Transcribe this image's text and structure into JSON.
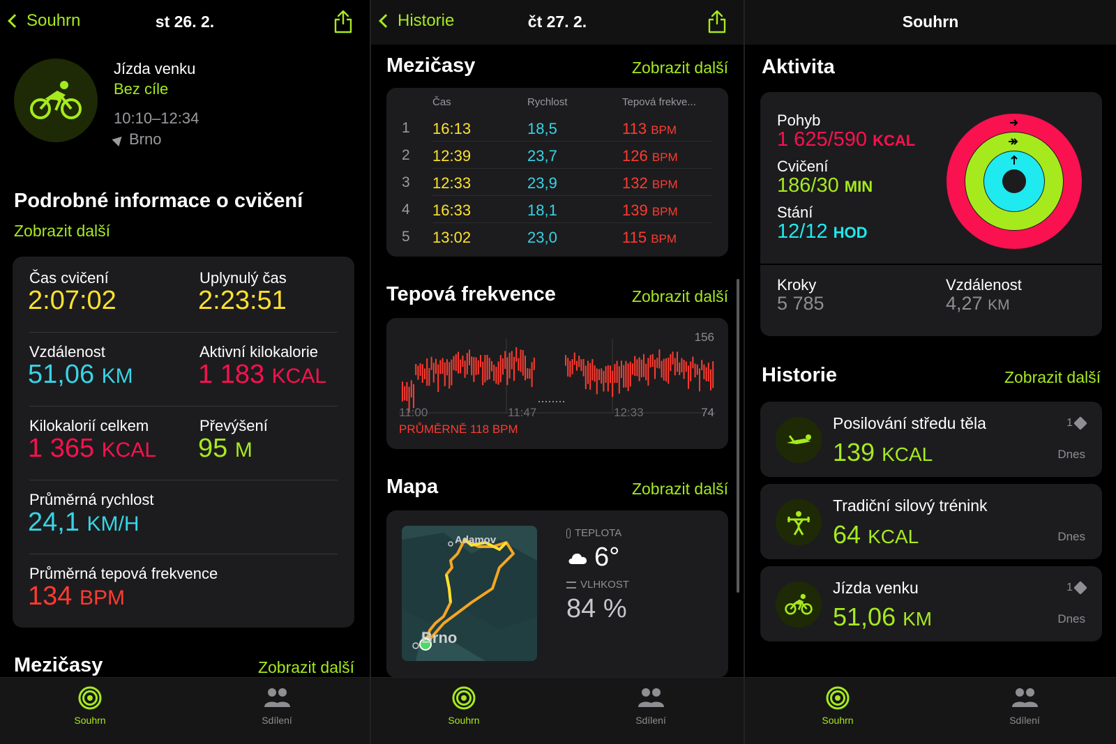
{
  "panel1": {
    "back_label": "Souhrn",
    "title": "st 26. 2.",
    "workout": {
      "name": "Jízda venku",
      "goal": "Bez cíle",
      "time": "10:10–12:34",
      "location": "Brno"
    },
    "details_title": "Podrobné informace o cvičení",
    "details_more": "Zobrazit další",
    "stats": {
      "exercise_time_label": "Čas cvičení",
      "exercise_time": "2:07:02",
      "elapsed_label": "Uplynulý čas",
      "elapsed": "2:23:51",
      "distance_label": "Vzdálenost",
      "distance": "51,06",
      "distance_unit": "KM",
      "active_kcal_label": "Aktivní kilokalorie",
      "active_kcal": "1 183",
      "active_kcal_unit": "KCAL",
      "total_kcal_label": "Kilokalorií celkem",
      "total_kcal": "1 365",
      "total_kcal_unit": "KCAL",
      "elevation_label": "Převýšení",
      "elevation": "95",
      "elevation_unit": "M",
      "avg_speed_label": "Průměrná rychlost",
      "avg_speed": "24,1",
      "avg_speed_unit": "KM/H",
      "avg_hr_label": "Průměrná tepová frekvence",
      "avg_hr": "134",
      "avg_hr_unit": "BPM"
    },
    "splits_title": "Mezičasy",
    "splits_more": "Zobrazit další"
  },
  "panel2": {
    "back_label": "Historie",
    "title": "čt 27. 2.",
    "splits": {
      "title": "Mezičasy",
      "more": "Zobrazit další",
      "col_time": "Čas",
      "col_speed": "Rychlost",
      "col_hr": "Tepová frekve...",
      "unit": "BPM",
      "rows": [
        {
          "n": "1",
          "time": "16:13",
          "speed": "18,5",
          "hr": "113"
        },
        {
          "n": "2",
          "time": "12:39",
          "speed": "23,7",
          "hr": "126"
        },
        {
          "n": "3",
          "time": "12:33",
          "speed": "23,9",
          "hr": "132"
        },
        {
          "n": "4",
          "time": "16:33",
          "speed": "18,1",
          "hr": "139"
        },
        {
          "n": "5",
          "time": "13:02",
          "speed": "23,0",
          "hr": "115"
        }
      ]
    },
    "heart": {
      "title": "Tepová frekvence",
      "more": "Zobrazit další",
      "max_label": "156",
      "min_label": "74",
      "x_labels": [
        "11:00",
        "11:47",
        "12:33"
      ],
      "average": "PRŮMĚRNĚ 118 BPM"
    },
    "map": {
      "title": "Mapa",
      "more": "Zobrazit další",
      "place_top": "Adamov",
      "place_bottom": "Brno",
      "temp_label": "TEPLOTA",
      "temp": "6°",
      "humidity_label": "VLHKOST",
      "humidity": "84 %"
    }
  },
  "panel3": {
    "title": "Souhrn",
    "activity_title": "Aktivita",
    "move_label": "Pohyb",
    "move_value": "1 625/590",
    "move_unit": "KCAL",
    "exercise_label": "Cvičení",
    "exercise_value": "186/30",
    "exercise_unit": "MIN",
    "stand_label": "Stání",
    "stand_value": "12/12",
    "stand_unit": "HOD",
    "steps_label": "Kroky",
    "steps": "5 785",
    "distance_label": "Vzdálenost",
    "distance": "4,27",
    "distance_unit": "KM",
    "history_title": "Historie",
    "history_more": "Zobrazit další",
    "history": [
      {
        "name": "Posilování středu těla",
        "value": "139",
        "unit": "KCAL",
        "date": "Dnes",
        "count": "1"
      },
      {
        "name": "Tradiční silový trénink",
        "value": "64",
        "unit": "KCAL",
        "date": "Dnes",
        "count": ""
      },
      {
        "name": "Jízda venku",
        "value": "51,06",
        "unit": "KM",
        "date": "Dnes",
        "count": "1"
      }
    ]
  },
  "tabbar": {
    "summary": "Souhrn",
    "sharing": "Sdílení"
  },
  "colors": {
    "accent": "#a6ea1e",
    "move": "#fa114f",
    "exercise": "#a6ea1e",
    "stand": "#1eeaef",
    "hr": "#ff3b30",
    "speed": "#37d4e6",
    "time": "#fde22e"
  }
}
